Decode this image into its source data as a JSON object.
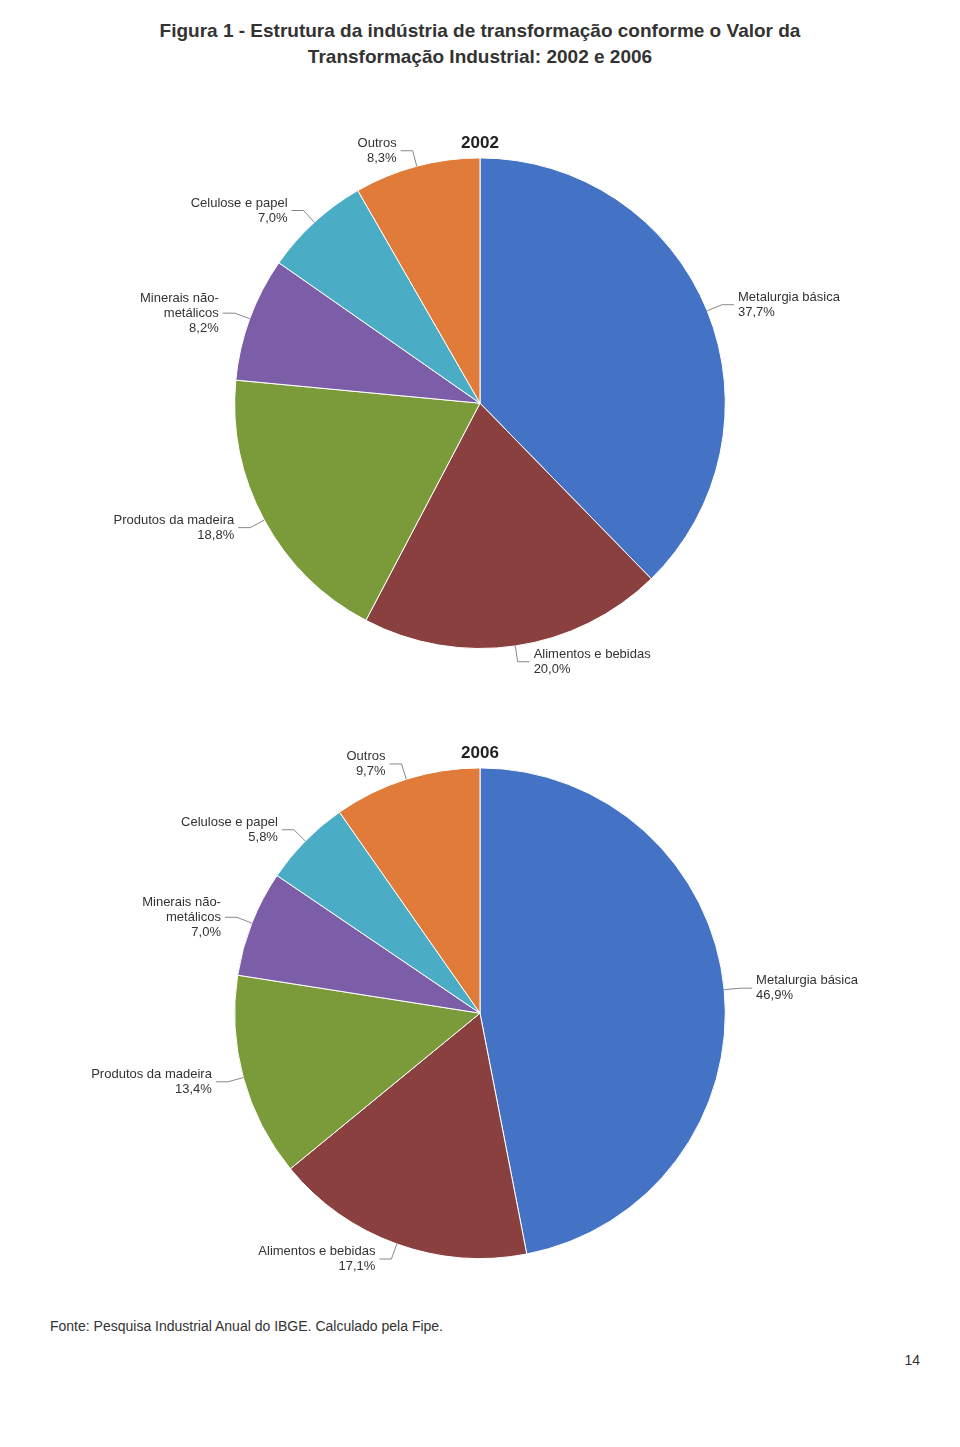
{
  "title": [
    "Figura 1 - Estrutura da indústria de transformação conforme o Valor da",
    "Transformação Industrial: 2002 e 2006"
  ],
  "annotations": [
    "Fonte: Pesquisa Industrial Anual do IBGE. Calculado pela Fipe.",
    "14"
  ],
  "chart_data": [
    {
      "type": "pie",
      "title": "2002",
      "categories": [
        "Metalurgia básica",
        "Alimentos e bebidas",
        "Produtos da madeira",
        "Minerais não-\nmetálicos",
        "Celulose e papel",
        "Outros"
      ],
      "values": [
        37.7,
        20.0,
        18.8,
        8.2,
        7.0,
        8.3
      ],
      "value_labels": [
        "37,7%",
        "20,0%",
        "18,8%",
        "8,2%",
        "7,0%",
        "8,3%"
      ],
      "colors": [
        "#4472C4",
        "#8B4040",
        "#7B9B3A",
        "#7B5EA7",
        "#4BACC6",
        "#E07B39"
      ],
      "data_labels": true
    },
    {
      "type": "pie",
      "title": "2006",
      "categories": [
        "Metalurgia básica",
        "Alimentos e bebidas",
        "Produtos da madeira",
        "Minerais não-\nmetálicos",
        "Celulose e papel",
        "Outros"
      ],
      "values": [
        46.9,
        17.1,
        13.4,
        7.0,
        5.8,
        9.7
      ],
      "value_labels": [
        "46,9%",
        "17,1%",
        "13,4%",
        "7,0%",
        "5,8%",
        "9,7%"
      ],
      "colors": [
        "#4472C4",
        "#8B4040",
        "#7B9B3A",
        "#7B5EA7",
        "#4BACC6",
        "#E07B39"
      ],
      "data_labels": true
    }
  ]
}
